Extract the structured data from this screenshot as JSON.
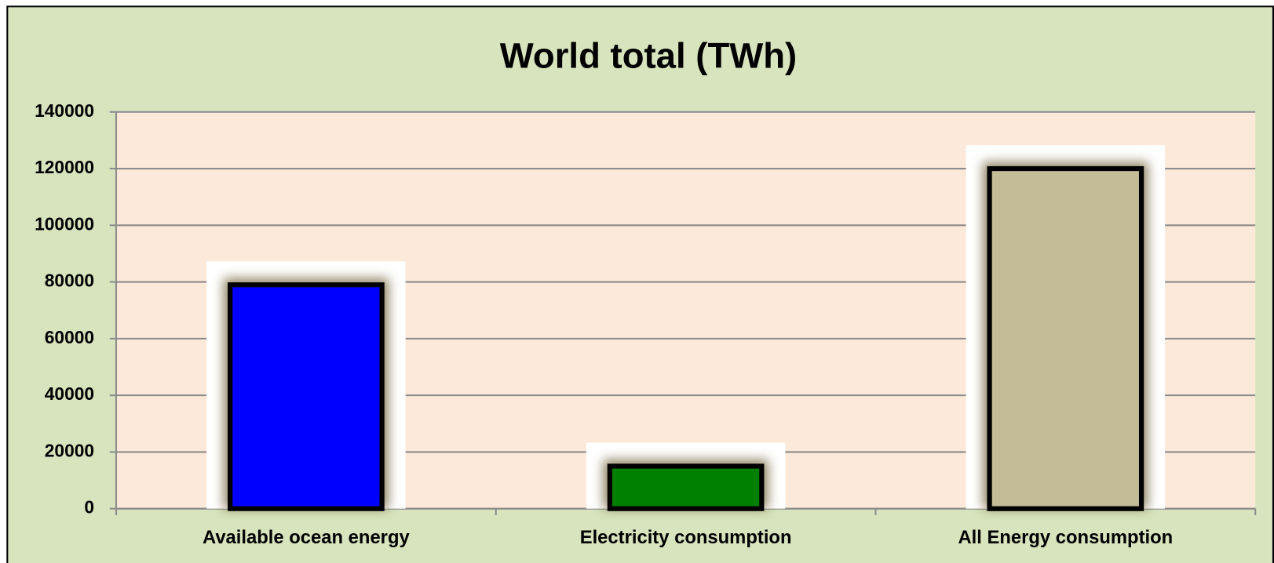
{
  "chart_data": {
    "type": "bar",
    "title": "World total (TWh)",
    "categories": [
      "Available ocean energy",
      "Electricity consumption",
      "All Energy consumption"
    ],
    "values": [
      79000,
      15000,
      120000
    ],
    "colors": [
      "#0000ff",
      "#008000",
      "#c4bc96"
    ],
    "ylim": [
      0,
      140000
    ],
    "yticks": [
      0,
      20000,
      40000,
      60000,
      80000,
      100000,
      120000,
      140000
    ],
    "grid": true
  }
}
